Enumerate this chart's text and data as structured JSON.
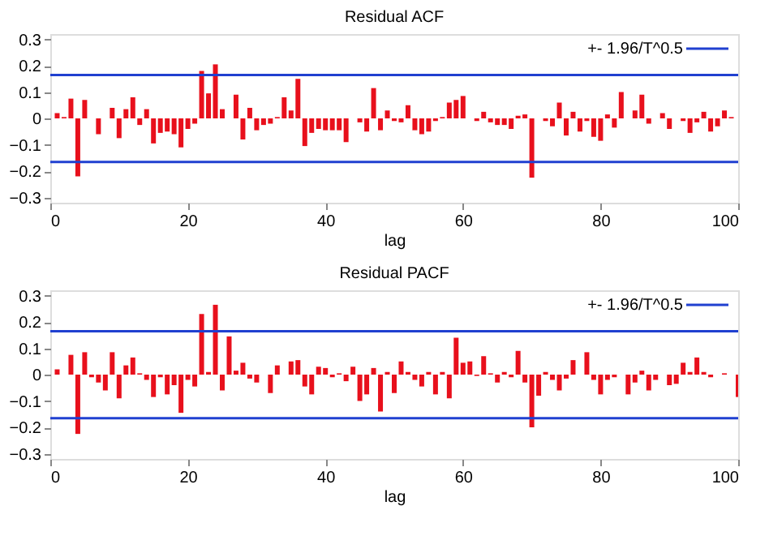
{
  "chart_data": [
    {
      "type": "bar",
      "title": "Residual ACF",
      "xlabel": "lag",
      "x": [
        1,
        2,
        3,
        4,
        5,
        6,
        7,
        8,
        9,
        10,
        11,
        12,
        13,
        14,
        15,
        16,
        17,
        18,
        19,
        20,
        21,
        22,
        23,
        24,
        25,
        26,
        27,
        28,
        29,
        30,
        31,
        32,
        33,
        34,
        35,
        36,
        37,
        38,
        39,
        40,
        41,
        42,
        43,
        44,
        45,
        46,
        47,
        48,
        49,
        50,
        51,
        52,
        53,
        54,
        55,
        56,
        57,
        58,
        59,
        60,
        61,
        62,
        63,
        64,
        65,
        66,
        67,
        68,
        69,
        70,
        71,
        72,
        73,
        74,
        75,
        76,
        77,
        78,
        79,
        80,
        81,
        82,
        83,
        84,
        85,
        86,
        87,
        88,
        89,
        90,
        91,
        92,
        93,
        94,
        95,
        96,
        97,
        98,
        99,
        100
      ],
      "series": [
        {
          "color": "#e8101c",
          "values": [
            0.02,
            0.005,
            0.075,
            -0.22,
            0.07,
            0.0,
            -0.06,
            0.0,
            0.04,
            -0.075,
            0.035,
            0.08,
            -0.025,
            0.035,
            -0.095,
            -0.055,
            -0.05,
            -0.06,
            -0.11,
            -0.04,
            -0.02,
            0.18,
            0.095,
            0.205,
            0.035,
            0.0,
            0.09,
            -0.08,
            0.04,
            -0.045,
            -0.025,
            -0.02,
            0.005,
            0.08,
            0.03,
            0.15,
            -0.105,
            -0.055,
            -0.04,
            -0.045,
            -0.045,
            -0.045,
            -0.09,
            0.0,
            -0.015,
            -0.05,
            0.115,
            -0.045,
            0.03,
            -0.01,
            -0.015,
            0.05,
            -0.045,
            -0.06,
            -0.05,
            -0.01,
            0.005,
            0.06,
            0.07,
            0.085,
            0.0,
            -0.01,
            0.025,
            -0.015,
            -0.025,
            -0.025,
            -0.04,
            0.01,
            0.015,
            -0.225,
            0.0,
            -0.01,
            -0.03,
            0.06,
            -0.065,
            0.025,
            -0.05,
            -0.01,
            -0.07,
            -0.085,
            0.015,
            -0.035,
            0.1,
            0.0,
            0.03,
            0.09,
            -0.02,
            0.0,
            0.02,
            -0.04,
            0.0,
            -0.01,
            -0.055,
            -0.015,
            0.025,
            -0.05,
            -0.03,
            0.03,
            0.005,
            0.0
          ]
        }
      ],
      "xlim": [
        0,
        100
      ],
      "xticks": [
        0,
        20,
        40,
        60,
        80,
        100
      ],
      "ylim": [
        -0.32,
        0.32
      ],
      "yticks": [
        -0.3,
        -0.2,
        -0.1,
        0,
        0.1,
        0.2,
        0.3
      ],
      "ref_lines": [
        {
          "axis": "y",
          "value": 0.165,
          "label": "+- 1.96/T^0.5",
          "color": "#2040d0"
        },
        {
          "axis": "y",
          "value": -0.165,
          "color": "#2040d0"
        }
      ],
      "grid": false
    },
    {
      "type": "bar",
      "title": "Residual PACF",
      "xlabel": "lag",
      "x": [
        1,
        2,
        3,
        4,
        5,
        6,
        7,
        8,
        9,
        10,
        11,
        12,
        13,
        14,
        15,
        16,
        17,
        18,
        19,
        20,
        21,
        22,
        23,
        24,
        25,
        26,
        27,
        28,
        29,
        30,
        31,
        32,
        33,
        34,
        35,
        36,
        37,
        38,
        39,
        40,
        41,
        42,
        43,
        44,
        45,
        46,
        47,
        48,
        49,
        50,
        51,
        52,
        53,
        54,
        55,
        56,
        57,
        58,
        59,
        60,
        61,
        62,
        63,
        64,
        65,
        66,
        67,
        68,
        69,
        70,
        71,
        72,
        73,
        74,
        75,
        76,
        77,
        78,
        79,
        80,
        81,
        82,
        83,
        84,
        85,
        86,
        87,
        88,
        89,
        90,
        91,
        92,
        93,
        94,
        95,
        96,
        97,
        98,
        99,
        100
      ],
      "series": [
        {
          "color": "#e8101c",
          "values": [
            0.02,
            0.0,
            0.075,
            -0.225,
            0.085,
            -0.01,
            -0.03,
            -0.06,
            0.085,
            -0.09,
            0.035,
            0.065,
            0.005,
            -0.02,
            -0.085,
            -0.01,
            -0.075,
            -0.04,
            -0.145,
            -0.02,
            -0.045,
            0.23,
            0.01,
            0.265,
            -0.06,
            0.145,
            0.015,
            0.045,
            -0.015,
            -0.03,
            0.0,
            -0.07,
            0.035,
            0.0,
            0.05,
            0.055,
            -0.045,
            -0.075,
            0.03,
            0.025,
            -0.01,
            0.005,
            -0.025,
            0.03,
            -0.1,
            -0.075,
            0.025,
            -0.14,
            0.01,
            -0.07,
            0.05,
            0.01,
            -0.02,
            -0.045,
            0.01,
            -0.075,
            0.01,
            -0.09,
            0.14,
            0.045,
            0.05,
            -0.005,
            0.07,
            0.005,
            -0.03,
            0.01,
            -0.01,
            0.09,
            -0.03,
            -0.2,
            -0.08,
            0.01,
            -0.02,
            -0.06,
            -0.015,
            0.055,
            0.0,
            0.085,
            -0.02,
            -0.075,
            -0.02,
            -0.01,
            0.0,
            -0.075,
            -0.03,
            0.015,
            -0.06,
            -0.02,
            0.0,
            -0.04,
            -0.035,
            0.045,
            0.01,
            0.065,
            0.01,
            -0.01,
            0.0,
            0.005,
            0.0,
            -0.085
          ]
        }
      ],
      "xlim": [
        0,
        100
      ],
      "xticks": [
        0,
        20,
        40,
        60,
        80,
        100
      ],
      "ylim": [
        -0.32,
        0.32
      ],
      "yticks": [
        -0.3,
        -0.2,
        -0.1,
        0,
        0.1,
        0.2,
        0.3
      ],
      "ref_lines": [
        {
          "axis": "y",
          "value": 0.165,
          "label": "+- 1.96/T^0.5",
          "color": "#2040d0"
        },
        {
          "axis": "y",
          "value": -0.165,
          "color": "#2040d0"
        }
      ],
      "grid": false
    }
  ]
}
